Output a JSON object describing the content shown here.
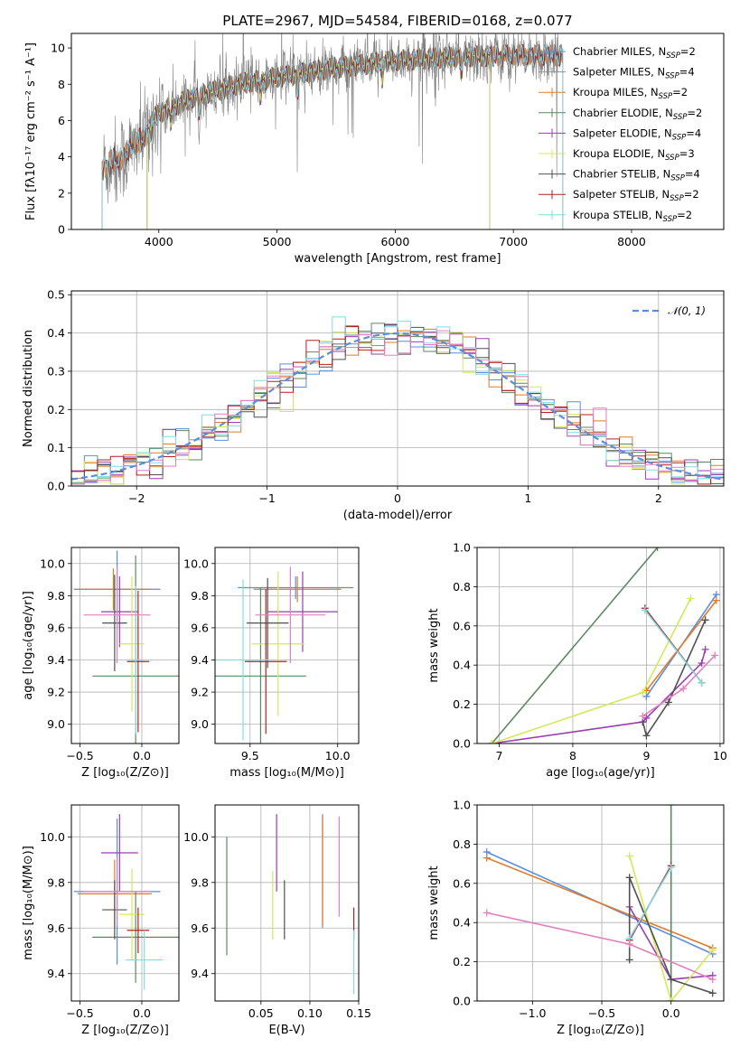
{
  "figure": {
    "title": "PLATE=2967, MJD=54584, FIBERID=0168, z=0.077"
  },
  "colors": {
    "chabrier_miles": "#5a8ee0",
    "salpeter_miles": "#8f8f8f",
    "kroupa_miles": "#e07b2a",
    "chabrier_elodie": "#5a8a5f",
    "salpeter_elodie": "#9a3fb0",
    "kroupa_elodie": "#d4e85a",
    "chabrier_stelib": "#505050",
    "salpeter_stelib": "#b22020",
    "kroupa_stelib": "#80dce0",
    "pink": "#e27fbf",
    "data_gray": "#808080",
    "normal_curve": "#5a8ee0"
  },
  "chart_data": [
    {
      "id": "spectrum",
      "type": "line",
      "title": "PLATE=2967, MJD=54584, FIBERID=0168, z=0.077",
      "xlabel": "wavelength [Angstrom, rest frame]",
      "ylabel": "Flux [fλ10⁻¹⁷ erg cm⁻² s⁻¹ A⁻¹]",
      "xlim": [
        3260,
        8780
      ],
      "ylim": [
        0,
        10.8
      ],
      "xticks": [
        4000,
        5000,
        6000,
        7000,
        8000
      ],
      "yticks": [
        0,
        2,
        4,
        6,
        8,
        10
      ],
      "grid": false,
      "legend_position": "right",
      "legend": [
        {
          "label": "Chabrier MILES, N",
          "sub": "SSP",
          "suffix": "=2",
          "color": "#5a8ee0"
        },
        {
          "label": "Salpeter MILES, N",
          "sub": "SSP",
          "suffix": "=4",
          "color": "#8f8f8f"
        },
        {
          "label": "Kroupa MILES, N",
          "sub": "SSP",
          "suffix": "=2",
          "color": "#e07b2a"
        },
        {
          "label": "Chabrier ELODIE, N",
          "sub": "SSP",
          "suffix": "=2",
          "color": "#5a8a5f"
        },
        {
          "label": "Salpeter ELODIE, N",
          "sub": "SSP",
          "suffix": "=4",
          "color": "#9a3fb0"
        },
        {
          "label": "Kroupa ELODIE, N",
          "sub": "SSP",
          "suffix": "=3",
          "color": "#d4e85a"
        },
        {
          "label": "Chabrier STELIB, N",
          "sub": "SSP",
          "suffix": "=4",
          "color": "#505050"
        },
        {
          "label": "Salpeter STELIB, N",
          "sub": "SSP",
          "suffix": "=2",
          "color": "#b22020"
        },
        {
          "label": "Kroupa STELIB, N",
          "sub": "SSP",
          "suffix": "=2",
          "color": "#80dce0"
        }
      ],
      "continuum_points": [
        [
          3520,
          3.7
        ],
        [
          3700,
          4.3
        ],
        [
          3900,
          5.6
        ],
        [
          4000,
          6.4
        ],
        [
          4300,
          7.3
        ],
        [
          4600,
          7.9
        ],
        [
          5000,
          8.4
        ],
        [
          5500,
          8.9
        ],
        [
          6000,
          9.3
        ],
        [
          6500,
          9.5
        ],
        [
          7000,
          9.6
        ],
        [
          7400,
          9.6
        ]
      ],
      "model_ranges": [
        {
          "series": "MILES",
          "x": [
            3520,
            7420
          ]
        },
        {
          "series": "ELODIE",
          "x": [
            3900,
            6800
          ]
        },
        {
          "series": "STELIB",
          "x": [
            3520,
            7420
          ]
        }
      ]
    },
    {
      "id": "residuals",
      "type": "line",
      "xlabel": "(data-model)/error",
      "ylabel": "Normed distribution",
      "xlim": [
        -2.5,
        2.5
      ],
      "ylim": [
        0,
        0.51
      ],
      "xticks": [
        -2,
        -1,
        0,
        1,
        2
      ],
      "yticks": [
        0.0,
        0.1,
        0.2,
        0.3,
        0.4,
        0.5
      ],
      "grid": true,
      "legend_position": "top-right",
      "legend": [
        {
          "label": "𝒩(0, 1)",
          "color": "#5a8ee0",
          "style": "dashed"
        }
      ],
      "bin_width": 0.1,
      "histogram_count": 9,
      "normal_mean": 0,
      "normal_sigma": 1
    },
    {
      "id": "age-vs-z",
      "type": "scatter",
      "xlabel": "Z [log₁₀(Z/Z⊙)]",
      "ylabel": "age  [log₁₀(age/yr)]",
      "xlim": [
        -0.57,
        0.3
      ],
      "ylim": [
        8.88,
        10.1
      ],
      "xticks": [
        -0.5,
        0.0
      ],
      "yticks": [
        9.0,
        9.2,
        9.4,
        9.6,
        9.8,
        10.0
      ],
      "grid": true,
      "points": [
        {
          "x": -0.2,
          "y": 9.84,
          "xerr": 0.35,
          "yerr": 0.24,
          "color": "#5a8ee0"
        },
        {
          "x": -0.23,
          "y": 9.84,
          "xerr": 0.3,
          "yerr": 0.13,
          "color": "#e07b2a"
        },
        {
          "x": -0.05,
          "y": 9.3,
          "xerr": 0.35,
          "yerr": 0.75,
          "color": "#5a8a5f"
        },
        {
          "x": -0.18,
          "y": 9.7,
          "xerr": 0.15,
          "yerr": 0.22,
          "color": "#9a3fb0"
        },
        {
          "x": -0.08,
          "y": 9.5,
          "xerr": 0.1,
          "yerr": 0.42,
          "color": "#d4e85a"
        },
        {
          "x": -0.22,
          "y": 9.63,
          "xerr": 0.1,
          "yerr": 0.3,
          "color": "#505050"
        },
        {
          "x": -0.03,
          "y": 9.39,
          "xerr": 0.09,
          "yerr": 0.44,
          "color": "#b22020"
        },
        {
          "x": -0.05,
          "y": 9.4,
          "xerr": 0.06,
          "yerr": 0.46,
          "color": "#80dce0"
        },
        {
          "x": -0.2,
          "y": 9.68,
          "xerr": 0.27,
          "yerr": 0.3,
          "color": "#e27fbf"
        }
      ]
    },
    {
      "id": "age-vs-mass",
      "type": "scatter",
      "xlabel": "mass [log₁₀(M/M⊙)]",
      "ylabel": "",
      "xlim": [
        9.3,
        10.12
      ],
      "ylim": [
        8.88,
        10.1
      ],
      "xticks": [
        9.5,
        10.0
      ],
      "yticks": [
        9.0,
        9.2,
        9.4,
        9.6,
        9.8,
        10.0
      ],
      "grid": true,
      "points": [
        {
          "x": 9.76,
          "y": 9.85,
          "xerr": 0.33,
          "yerr": 0.07,
          "color": "#5a8ee0"
        },
        {
          "x": 9.77,
          "y": 9.84,
          "xerr": 0.25,
          "yerr": 0.08,
          "color": "#e07b2a"
        },
        {
          "x": 9.56,
          "y": 9.3,
          "xerr": 0.26,
          "yerr": 0.55,
          "color": "#5a8a5f"
        },
        {
          "x": 9.8,
          "y": 9.7,
          "xerr": 0.2,
          "yerr": 0.25,
          "color": "#9a3fb0"
        },
        {
          "x": 9.66,
          "y": 9.5,
          "xerr": 0.15,
          "yerr": 0.45,
          "color": "#d4e85a"
        },
        {
          "x": 9.6,
          "y": 9.63,
          "xerr": 0.12,
          "yerr": 0.28,
          "color": "#505050"
        },
        {
          "x": 9.59,
          "y": 9.39,
          "xerr": 0.12,
          "yerr": 0.45,
          "color": "#b22020"
        },
        {
          "x": 9.46,
          "y": 9.4,
          "xerr": 0.15,
          "yerr": 0.5,
          "color": "#80dce0"
        },
        {
          "x": 9.73,
          "y": 9.68,
          "xerr": 0.2,
          "yerr": 0.3,
          "color": "#e27fbf"
        }
      ]
    },
    {
      "id": "weight-vs-age",
      "type": "line",
      "xlabel": "age  [log₁₀(age/yr)]",
      "ylabel": "mass weight",
      "xlim": [
        6.7,
        10.05
      ],
      "ylim": [
        0,
        1.0
      ],
      "xticks": [
        7,
        8,
        9,
        10
      ],
      "yticks": [
        0.0,
        0.2,
        0.4,
        0.6,
        0.8,
        1.0
      ],
      "grid": true,
      "series": [
        {
          "color": "#5a8ee0",
          "x": [
            9.0,
            9.95
          ],
          "y": [
            0.24,
            0.76
          ]
        },
        {
          "color": "#e07b2a",
          "x": [
            9.0,
            9.95
          ],
          "y": [
            0.27,
            0.73
          ]
        },
        {
          "color": "#5a8a5f",
          "x": [
            6.9,
            9.15
          ],
          "y": [
            0.0,
            1.0
          ]
        },
        {
          "color": "#9a3fb0",
          "x": [
            6.9,
            8.95,
            9.0,
            9.75,
            9.8
          ],
          "y": [
            0.0,
            0.11,
            0.13,
            0.41,
            0.48
          ]
        },
        {
          "color": "#d4e85a",
          "x": [
            6.9,
            8.95,
            9.6
          ],
          "y": [
            0.0,
            0.26,
            0.74
          ]
        },
        {
          "color": "#505050",
          "x": [
            8.95,
            9.0,
            9.3,
            9.8
          ],
          "y": [
            0.11,
            0.04,
            0.21,
            0.63
          ]
        },
        {
          "color": "#b22020",
          "x": [
            8.98,
            9.75
          ],
          "y": [
            0.69,
            0.31
          ]
        },
        {
          "color": "#80dce0",
          "x": [
            8.98,
            9.75
          ],
          "y": [
            0.68,
            0.31
          ]
        },
        {
          "color": "#e27fbf",
          "x": [
            8.95,
            9.5,
            9.93
          ],
          "y": [
            0.14,
            0.28,
            0.45
          ]
        }
      ]
    },
    {
      "id": "mass-vs-z",
      "type": "scatter",
      "xlabel": "Z [log₁₀(Z/Z⊙)]",
      "ylabel": "mass [log₁₀(M/M⊙)]",
      "xlim": [
        -0.57,
        0.3
      ],
      "ylim": [
        9.28,
        10.14
      ],
      "xticks": [
        -0.5,
        0.0
      ],
      "yticks": [
        9.4,
        9.6,
        9.8,
        10.0
      ],
      "grid": true,
      "points": [
        {
          "x": -0.2,
          "y": 9.76,
          "xerr": 0.35,
          "yerr": 0.32,
          "color": "#5a8ee0"
        },
        {
          "x": -0.22,
          "y": 9.75,
          "xerr": 0.3,
          "yerr": 0.15,
          "color": "#e07b2a"
        },
        {
          "x": -0.05,
          "y": 9.56,
          "xerr": 0.35,
          "yerr": 0.2,
          "color": "#5a8a5f"
        },
        {
          "x": -0.18,
          "y": 9.93,
          "xerr": 0.15,
          "yerr": 0.17,
          "color": "#9a3fb0"
        },
        {
          "x": -0.08,
          "y": 9.66,
          "xerr": 0.1,
          "yerr": 0.2,
          "color": "#d4e85a"
        },
        {
          "x": -0.22,
          "y": 9.68,
          "xerr": 0.1,
          "yerr": 0.13,
          "color": "#505050"
        },
        {
          "x": -0.03,
          "y": 9.59,
          "xerr": 0.09,
          "yerr": 0.1,
          "color": "#b22020"
        },
        {
          "x": 0.02,
          "y": 9.46,
          "xerr": 0.15,
          "yerr": 0.13,
          "color": "#80dce0"
        },
        {
          "x": -0.2,
          "y": 9.76,
          "xerr": 0.27,
          "yerr": 0.15,
          "color": "#e27fbf"
        }
      ]
    },
    {
      "id": "mass-vs-ebv",
      "type": "scatter",
      "xlabel": "E(B-V)",
      "ylabel": "",
      "xlim": [
        0.003,
        0.15
      ],
      "ylim": [
        9.28,
        10.14
      ],
      "xticks": [
        0.05,
        0.1,
        0.15
      ],
      "yticks": [
        9.4,
        9.6,
        9.8,
        10.0
      ],
      "grid": true,
      "points": [
        {
          "x": 0.113,
          "y": 9.85,
          "yerr": 0.25,
          "color": "#5a8ee0"
        },
        {
          "x": 0.113,
          "y": 9.85,
          "yerr": 0.24,
          "color": "#e07b2a"
        },
        {
          "x": 0.015,
          "y": 9.74,
          "yerr": 0.26,
          "color": "#5a8a5f"
        },
        {
          "x": 0.066,
          "y": 9.93,
          "yerr": 0.17,
          "color": "#9a3fb0"
        },
        {
          "x": 0.062,
          "y": 9.7,
          "yerr": 0.15,
          "color": "#d4e85a"
        },
        {
          "x": 0.074,
          "y": 9.68,
          "yerr": 0.13,
          "color": "#505050"
        },
        {
          "x": 0.145,
          "y": 9.62,
          "yerr": 0.07,
          "color": "#b22020"
        },
        {
          "x": 0.145,
          "y": 9.45,
          "yerr": 0.14,
          "color": "#80dce0"
        },
        {
          "x": 0.13,
          "y": 9.87,
          "yerr": 0.22,
          "color": "#e27fbf"
        }
      ]
    },
    {
      "id": "weight-vs-z",
      "type": "line",
      "xlabel": "Z [log₁₀(Z/Z⊙)]",
      "ylabel": "mass weight",
      "xlim": [
        -1.4,
        0.38
      ],
      "ylim": [
        0,
        1.0
      ],
      "xticks": [
        -1.0,
        -0.5,
        0.0
      ],
      "yticks": [
        0.0,
        0.2,
        0.4,
        0.6,
        0.8,
        1.0
      ],
      "grid": true,
      "series": [
        {
          "color": "#5a8ee0",
          "x": [
            -1.33,
            0.3
          ],
          "y": [
            0.76,
            0.24
          ]
        },
        {
          "color": "#e07b2a",
          "x": [
            -1.33,
            0.3
          ],
          "y": [
            0.73,
            0.27
          ]
        },
        {
          "color": "#5a8a5f",
          "x": [
            0.0,
            0.0
          ],
          "y": [
            0.0,
            1.0
          ]
        },
        {
          "color": "#9a3fb0",
          "x": [
            -0.3,
            0.0,
            0.3
          ],
          "y": [
            0.48,
            0.11,
            0.13
          ]
        },
        {
          "color": "#d4e85a",
          "x": [
            -0.3,
            0.0,
            0.3
          ],
          "y": [
            0.74,
            0.0,
            0.26
          ]
        },
        {
          "color": "#505050",
          "x": [
            -0.3,
            -0.3,
            0.0,
            0.3
          ],
          "y": [
            0.21,
            0.63,
            0.11,
            0.04
          ]
        },
        {
          "color": "#b22020",
          "x": [
            -0.3,
            0.0
          ],
          "y": [
            0.31,
            0.69
          ]
        },
        {
          "color": "#80dce0",
          "x": [
            -0.3,
            0.0
          ],
          "y": [
            0.32,
            0.68
          ]
        },
        {
          "color": "#e27fbf",
          "x": [
            -1.33,
            -0.3,
            0.3
          ],
          "y": [
            0.45,
            0.29,
            0.11
          ]
        }
      ]
    }
  ]
}
